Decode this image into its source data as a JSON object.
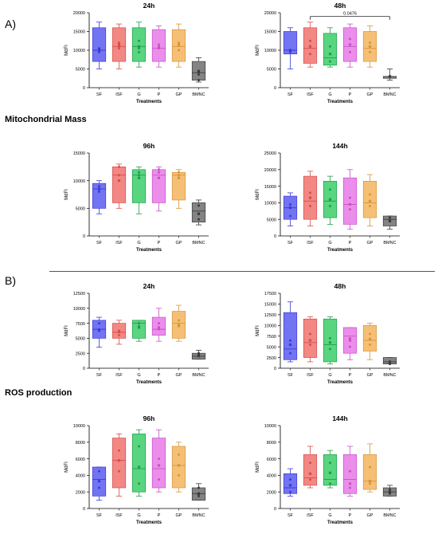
{
  "panels": {
    "a_label": "A)",
    "b_label": "B)",
    "mito_label": "Mitochondrial Mass",
    "ros_label": "ROS production"
  },
  "styling": {
    "groups": [
      "SF",
      "ISF",
      "G",
      "P",
      "GP",
      "BMNC"
    ],
    "fill_colors": [
      "#5b5cf0",
      "#f0736e",
      "#3cce6a",
      "#e87ae8",
      "#f3b55e",
      "#6f6f6f"
    ],
    "edge_colors": [
      "#3b3bd6",
      "#d84e49",
      "#1e9e4a",
      "#c950c9",
      "#d9953a",
      "#3a3a3a"
    ]
  },
  "chart_data": [
    {
      "type": "box",
      "title": "24h",
      "xlabel": "Treatments",
      "ylabel": "MdFI",
      "ylim": [
        0,
        20000
      ],
      "yticks": [
        0,
        5000,
        10000,
        15000,
        20000
      ],
      "categories": [
        "SF",
        "ISF",
        "G",
        "P",
        "GP",
        "BMNC"
      ],
      "boxes": [
        {
          "min": 5000,
          "q1": 7000,
          "median": 10000,
          "q3": 16000,
          "max": 17500,
          "mean": 10300,
          "points": [
            9800,
            10500,
            9500
          ]
        },
        {
          "min": 5000,
          "q1": 7000,
          "median": 11000,
          "q3": 16000,
          "max": 17000,
          "mean": 11500,
          "points": [
            11000,
            12000,
            10500
          ]
        },
        {
          "min": 5500,
          "q1": 7000,
          "median": 11000,
          "q3": 16000,
          "max": 17500,
          "mean": 11000,
          "points": [
            9500,
            12500,
            10500
          ]
        },
        {
          "min": 5500,
          "q1": 7000,
          "median": 10500,
          "q3": 15500,
          "max": 16500,
          "mean": 10800,
          "points": [
            10800,
            10500,
            11500
          ]
        },
        {
          "min": 5500,
          "q1": 7000,
          "median": 11000,
          "q3": 15500,
          "max": 17000,
          "mean": 11300,
          "points": [
            12000,
            10000,
            11500
          ]
        },
        {
          "min": 1500,
          "q1": 2000,
          "median": 4000,
          "q3": 7000,
          "max": 8000,
          "mean": 4200,
          "points": [
            2000,
            4500,
            3500
          ]
        }
      ],
      "annotations": []
    },
    {
      "type": "box",
      "title": "48h",
      "xlabel": "Treatments",
      "ylabel": "MdFI",
      "ylim": [
        0,
        20000
      ],
      "yticks": [
        0,
        5000,
        10000,
        15000,
        20000
      ],
      "categories": [
        "SF",
        "ISF",
        "G",
        "P",
        "GP",
        "BMNC"
      ],
      "boxes": [
        {
          "min": 5000,
          "q1": 9000,
          "median": 10000,
          "q3": 15000,
          "max": 16000,
          "mean": 10000,
          "points": [
            10000,
            9500
          ]
        },
        {
          "min": 5500,
          "q1": 6500,
          "median": 10500,
          "q3": 16000,
          "max": 17500,
          "mean": 11000,
          "points": [
            12500,
            9000
          ]
        },
        {
          "min": 5500,
          "q1": 6000,
          "median": 8000,
          "q3": 14500,
          "max": 16000,
          "mean": 9000,
          "points": [
            7000,
            11000
          ]
        },
        {
          "min": 5500,
          "q1": 7000,
          "median": 11000,
          "q3": 16000,
          "max": 17000,
          "mean": 11500,
          "points": [
            13000,
            9500
          ]
        },
        {
          "min": 5500,
          "q1": 7000,
          "median": 10500,
          "q3": 15000,
          "max": 16500,
          "mean": 11000,
          "points": [
            12000,
            9500
          ]
        },
        {
          "min": 2000,
          "q1": 2500,
          "median": 3000,
          "q3": 3000,
          "max": 5000,
          "mean": 3000,
          "points": []
        }
      ],
      "annotations": [
        {
          "text": "0.0476",
          "from": 1,
          "to": 5,
          "y": 19000
        }
      ]
    },
    {
      "type": "box",
      "title": "96h",
      "xlabel": "Treatments",
      "ylabel": "MdFI",
      "ylim": [
        0,
        15000
      ],
      "yticks": [
        0,
        5000,
        10000,
        15000
      ],
      "categories": [
        "SF",
        "ISF",
        "G",
        "P",
        "GP",
        "BMNC"
      ],
      "boxes": [
        {
          "min": 4000,
          "q1": 5000,
          "median": 8500,
          "q3": 9500,
          "max": 10000,
          "mean": 8500,
          "points": [
            8000,
            9000
          ]
        },
        {
          "min": 5000,
          "q1": 6000,
          "median": 11000,
          "q3": 12500,
          "max": 13000,
          "mean": 10000,
          "points": [
            11000,
            12500
          ]
        },
        {
          "min": 4000,
          "q1": 6000,
          "median": 11000,
          "q3": 12000,
          "max": 12500,
          "mean": 10500,
          "points": [
            11000,
            11500
          ]
        },
        {
          "min": 4500,
          "q1": 6000,
          "median": 11000,
          "q3": 12000,
          "max": 12500,
          "mean": 10500,
          "points": [
            11500,
            12000
          ]
        },
        {
          "min": 5000,
          "q1": 6500,
          "median": 11000,
          "q3": 11500,
          "max": 12000,
          "mean": 10500,
          "points": [
            11000,
            11500
          ]
        },
        {
          "min": 2000,
          "q1": 2500,
          "median": 4500,
          "q3": 6000,
          "max": 6500,
          "mean": 4000,
          "points": [
            3000,
            5500
          ]
        }
      ],
      "annotations": []
    },
    {
      "type": "box",
      "title": "144h",
      "xlabel": "Treatments",
      "ylabel": "MdFI",
      "ylim": [
        0,
        25000
      ],
      "yticks": [
        0,
        5000,
        10000,
        15000,
        20000,
        25000
      ],
      "categories": [
        "SF",
        "ISF",
        "G",
        "P",
        "GP",
        "BMNC"
      ],
      "boxes": [
        {
          "min": 3000,
          "q1": 5000,
          "median": 8500,
          "q3": 12000,
          "max": 13000,
          "mean": 8500,
          "points": [
            6000,
            9500
          ]
        },
        {
          "min": 3000,
          "q1": 5000,
          "median": 10500,
          "q3": 18000,
          "max": 19500,
          "mean": 11500,
          "points": [
            9000,
            13000
          ]
        },
        {
          "min": 3500,
          "q1": 5500,
          "median": 10500,
          "q3": 16500,
          "max": 18000,
          "mean": 11000,
          "points": [
            9000,
            14000
          ]
        },
        {
          "min": 2000,
          "q1": 3500,
          "median": 9500,
          "q3": 17500,
          "max": 20000,
          "mean": 9500,
          "points": [
            8000,
            11500
          ]
        },
        {
          "min": 3000,
          "q1": 5500,
          "median": 10000,
          "q3": 16500,
          "max": 18500,
          "mean": 10500,
          "points": [
            9000,
            12500
          ]
        },
        {
          "min": 2000,
          "q1": 3000,
          "median": 5000,
          "q3": 6000,
          "max": 6000,
          "mean": 4500,
          "points": [
            4500,
            5500
          ]
        }
      ],
      "annotations": []
    },
    {
      "type": "box",
      "title": "24h",
      "xlabel": "Treatments",
      "ylabel": "MdFI",
      "ylim": [
        0,
        12500
      ],
      "yticks": [
        0,
        2500,
        5000,
        7500,
        10000,
        12500
      ],
      "categories": [
        "SF",
        "ISF",
        "G",
        "P",
        "GP",
        "BMNC"
      ],
      "boxes": [
        {
          "min": 3500,
          "q1": 5000,
          "median": 6500,
          "q3": 8000,
          "max": 8500,
          "mean": 6300,
          "points": [
            6500,
            7500
          ]
        },
        {
          "min": 4000,
          "q1": 5000,
          "median": 6000,
          "q3": 7500,
          "max": 8000,
          "mean": 6200,
          "points": [
            6000,
            5500
          ]
        },
        {
          "min": 4500,
          "q1": 5000,
          "median": 7500,
          "q3": 8000,
          "max": 8000,
          "mean": 6800,
          "points": [
            7000,
            7500
          ]
        },
        {
          "min": 4500,
          "q1": 5500,
          "median": 6500,
          "q3": 8500,
          "max": 10000,
          "mean": 6800,
          "points": [
            6500,
            7500
          ]
        },
        {
          "min": 4500,
          "q1": 5000,
          "median": 7500,
          "q3": 9500,
          "max": 10500,
          "mean": 7200,
          "points": [
            7000,
            8000
          ]
        },
        {
          "min": 1500,
          "q1": 1500,
          "median": 2000,
          "q3": 2500,
          "max": 3000,
          "mean": 2200,
          "points": [
            2000,
            2500
          ]
        }
      ],
      "annotations": []
    },
    {
      "type": "box",
      "title": "48h",
      "xlabel": "Treatments",
      "ylabel": "MdFI",
      "ylim": [
        0,
        17500
      ],
      "yticks": [
        0,
        2500,
        5000,
        7500,
        10000,
        12500,
        15000,
        17500
      ],
      "categories": [
        "SF",
        "ISF",
        "G",
        "P",
        "GP",
        "BMNC"
      ],
      "boxes": [
        {
          "min": 1500,
          "q1": 2000,
          "median": 4500,
          "q3": 13000,
          "max": 15500,
          "mean": 5500,
          "points": [
            3500,
            6500
          ]
        },
        {
          "min": 1500,
          "q1": 2500,
          "median": 6000,
          "q3": 11500,
          "max": 12000,
          "mean": 6500,
          "points": [
            5500,
            8000
          ]
        },
        {
          "min": 1000,
          "q1": 1500,
          "median": 5500,
          "q3": 11500,
          "max": 12000,
          "mean": 6000,
          "points": [
            7000,
            4500
          ]
        },
        {
          "min": 2000,
          "q1": 3500,
          "median": 7500,
          "q3": 9500,
          "max": 9500,
          "mean": 6500,
          "points": [
            7000,
            5000
          ]
        },
        {
          "min": 2000,
          "q1": 4000,
          "median": 6500,
          "q3": 10000,
          "max": 10500,
          "mean": 6800,
          "points": [
            8000,
            5500
          ]
        },
        {
          "min": 1000,
          "q1": 1000,
          "median": 1500,
          "q3": 2500,
          "max": 2500,
          "mean": 1500,
          "points": [
            1000
          ]
        }
      ],
      "annotations": []
    },
    {
      "type": "box",
      "title": "96h",
      "xlabel": "Treatments",
      "ylabel": "MdFI",
      "ylim": [
        0,
        10000
      ],
      "yticks": [
        0,
        2000,
        4000,
        6000,
        8000,
        10000
      ],
      "categories": [
        "SF",
        "ISF",
        "G",
        "P",
        "GP",
        "BMNC"
      ],
      "boxes": [
        {
          "min": 1000,
          "q1": 1500,
          "median": 3500,
          "q3": 5000,
          "max": 5000,
          "mean": 3300,
          "points": [
            2500,
            4500
          ]
        },
        {
          "min": 1500,
          "q1": 2500,
          "median": 5800,
          "q3": 8500,
          "max": 9000,
          "mean": 5800,
          "points": [
            4500,
            7000
          ]
        },
        {
          "min": 1500,
          "q1": 2000,
          "median": 4800,
          "q3": 9000,
          "max": 9500,
          "mean": 5000,
          "points": [
            7500,
            3000
          ]
        },
        {
          "min": 2000,
          "q1": 2500,
          "median": 4800,
          "q3": 8500,
          "max": 9500,
          "mean": 5200,
          "points": [
            6000,
            3500
          ]
        },
        {
          "min": 2000,
          "q1": 2500,
          "median": 5200,
          "q3": 7500,
          "max": 8000,
          "mean": 5200,
          "points": [
            6500,
            4000
          ]
        },
        {
          "min": 1000,
          "q1": 1000,
          "median": 1800,
          "q3": 2500,
          "max": 3000,
          "mean": 1800,
          "points": [
            1500,
            2500
          ]
        }
      ],
      "annotations": []
    },
    {
      "type": "box",
      "title": "144h",
      "xlabel": "Treatments",
      "ylabel": "MdFI",
      "ylim": [
        0,
        10000
      ],
      "yticks": [
        0,
        2000,
        4000,
        6000,
        8000,
        10000
      ],
      "categories": [
        "SF",
        "ISF",
        "G",
        "P",
        "GP",
        "BMNC"
      ],
      "boxes": [
        {
          "min": 1500,
          "q1": 1800,
          "median": 2500,
          "q3": 4200,
          "max": 4800,
          "mean": 2800,
          "points": [
            2000,
            3500
          ]
        },
        {
          "min": 2500,
          "q1": 2800,
          "median": 3700,
          "q3": 6500,
          "max": 7500,
          "mean": 4200,
          "points": [
            3500,
            5500
          ]
        },
        {
          "min": 2500,
          "q1": 2800,
          "median": 3500,
          "q3": 6500,
          "max": 7000,
          "mean": 4300,
          "points": [
            3000,
            5500
          ]
        },
        {
          "min": 1500,
          "q1": 1800,
          "median": 3500,
          "q3": 6500,
          "max": 7500,
          "mean": 3000,
          "points": [
            2500,
            4500
          ]
        },
        {
          "min": 2000,
          "q1": 2300,
          "median": 3300,
          "q3": 6500,
          "max": 7800,
          "mean": 3300,
          "points": [
            3000,
            5000
          ]
        },
        {
          "min": 1500,
          "q1": 1500,
          "median": 2000,
          "q3": 2500,
          "max": 2800,
          "mean": 2000,
          "points": [
            1800,
            2300
          ]
        }
      ],
      "annotations": []
    }
  ]
}
